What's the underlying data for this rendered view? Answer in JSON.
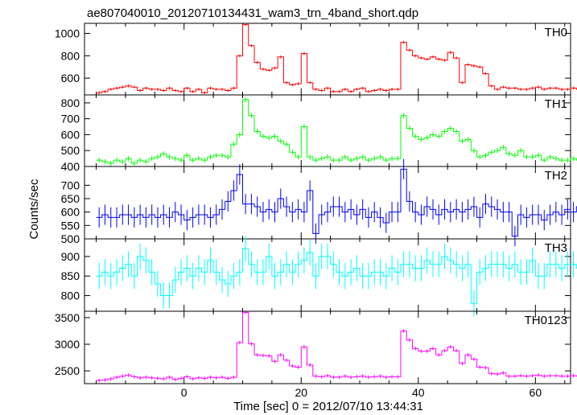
{
  "chart_data": {
    "type": "line",
    "title": "ae807040010_20120710134431_wam3_trn_4band_short.qdp",
    "xlabel": "Time [sec] 0 = 2012/07/10 13:44:31",
    "ylabel": "Counts/sec",
    "xlim": [
      -17,
      66
    ],
    "xticks": [
      0,
      20,
      40,
      60
    ],
    "bin_start": -15,
    "bin_width": 1,
    "grid": false,
    "panels": [
      {
        "name": "TH0",
        "color": "#ff0000",
        "ylim": [
          450,
          1090
        ],
        "yticks": [
          600,
          800,
          1000
        ],
        "values": [
          470,
          480,
          500,
          510,
          520,
          530,
          520,
          490,
          510,
          500,
          500,
          490,
          510,
          490,
          480,
          510,
          480,
          500,
          470,
          510,
          500,
          500,
          490,
          510,
          800,
          1080,
          890,
          740,
          680,
          670,
          690,
          790,
          560,
          540,
          550,
          820,
          560,
          500,
          490,
          510,
          480,
          480,
          500,
          480,
          500,
          510,
          480,
          490,
          500,
          490,
          500,
          500,
          920,
          850,
          800,
          780,
          770,
          790,
          770,
          760,
          830,
          780,
          560,
          720,
          710,
          700,
          640,
          530,
          500,
          520,
          510,
          510,
          500,
          500,
          510,
          520,
          500,
          510,
          510,
          500,
          500,
          510,
          500,
          510,
          500,
          510,
          500,
          500,
          490,
          500,
          480,
          490,
          500,
          510,
          500,
          510,
          520,
          500,
          510,
          490,
          490,
          480,
          490,
          490,
          500,
          510,
          520,
          530,
          510,
          520
        ]
      },
      {
        "name": "TH1",
        "color": "#00ff00",
        "ylim": [
          400,
          850
        ],
        "yticks": [
          400,
          500,
          600,
          700,
          800
        ],
        "values": [
          440,
          430,
          420,
          440,
          430,
          450,
          420,
          440,
          430,
          450,
          460,
          480,
          460,
          450,
          440,
          470,
          440,
          450,
          440,
          460,
          470,
          470,
          460,
          540,
          600,
          820,
          720,
          620,
          590,
          580,
          590,
          560,
          540,
          490,
          460,
          650,
          460,
          440,
          450,
          460,
          440,
          440,
          460,
          440,
          450,
          460,
          440,
          450,
          460,
          440,
          450,
          450,
          720,
          640,
          590,
          570,
          580,
          600,
          590,
          620,
          640,
          620,
          560,
          570,
          500,
          460,
          470,
          490,
          500,
          520,
          480,
          470,
          500,
          460,
          460,
          470,
          440,
          460,
          450,
          440,
          440,
          450,
          440,
          450,
          440,
          430,
          450,
          440,
          450,
          440,
          430,
          450,
          460,
          470,
          480,
          470,
          460,
          460,
          450,
          460,
          440,
          420,
          450,
          520,
          440,
          460,
          450,
          430,
          440,
          450
        ]
      },
      {
        "name": "TH2",
        "color": "#0000ff",
        "ylim": [
          500,
          770
        ],
        "yticks": [
          500,
          550,
          600,
          650,
          700
        ],
        "values": [
          580,
          590,
          580,
          580,
          590,
          590,
          580,
          590,
          580,
          590,
          580,
          590,
          580,
          600,
          590,
          570,
          580,
          590,
          590,
          580,
          590,
          610,
          640,
          680,
          740,
          630,
          630,
          620,
          600,
          610,
          600,
          650,
          620,
          600,
          610,
          600,
          680,
          520,
          590,
          600,
          620,
          620,
          600,
          610,
          590,
          610,
          580,
          600,
          580,
          560,
          600,
          600,
          760,
          640,
          600,
          590,
          620,
          610,
          590,
          610,
          600,
          610,
          600,
          610,
          620,
          580,
          630,
          620,
          610,
          600,
          600,
          510,
          590,
          580,
          590,
          590,
          570,
          590,
          600,
          590,
          610,
          600,
          620,
          590,
          560,
          590,
          600,
          640,
          630,
          550,
          580,
          590,
          600,
          590,
          600,
          620,
          600,
          610,
          590,
          600,
          600,
          610,
          620,
          590,
          600,
          610,
          600,
          620,
          600,
          610
        ]
      },
      {
        "name": "TH3",
        "color": "#00ffff",
        "ylim": [
          760,
          945
        ],
        "yticks": [
          800,
          850,
          900
        ],
        "values": [
          850,
          860,
          850,
          860,
          870,
          880,
          850,
          900,
          890,
          860,
          830,
          800,
          800,
          840,
          860,
          870,
          850,
          870,
          860,
          890,
          860,
          840,
          830,
          850,
          860,
          920,
          880,
          860,
          860,
          900,
          850,
          860,
          880,
          860,
          880,
          890,
          910,
          850,
          900,
          900,
          880,
          860,
          850,
          860,
          870,
          850,
          850,
          860,
          860,
          850,
          870,
          860,
          880,
          880,
          870,
          870,
          890,
          880,
          880,
          900,
          890,
          880,
          870,
          880,
          780,
          860,
          870,
          880,
          880,
          880,
          870,
          880,
          860,
          860,
          890,
          850,
          850,
          880,
          880,
          870,
          880,
          880,
          870,
          870,
          880,
          870,
          880,
          870,
          880,
          880,
          870,
          870,
          880,
          870,
          870,
          900,
          890,
          880,
          860,
          870,
          870,
          880,
          860,
          880,
          880,
          860,
          870,
          880,
          870,
          880
        ]
      },
      {
        "name": "TH0123",
        "color": "#ff00ff",
        "ylim": [
          2260,
          3620
        ],
        "yticks": [
          2500,
          3000,
          3500
        ],
        "values": [
          2320,
          2330,
          2350,
          2380,
          2400,
          2420,
          2390,
          2370,
          2380,
          2370,
          2360,
          2350,
          2380,
          2340,
          2360,
          2390,
          2350,
          2370,
          2360,
          2380,
          2370,
          2380,
          2360,
          2380,
          3030,
          3600,
          3010,
          2800,
          2790,
          2780,
          2680,
          2800,
          2700,
          2590,
          2570,
          2950,
          2610,
          2400,
          2390,
          2410,
          2380,
          2380,
          2400,
          2380,
          2390,
          2400,
          2380,
          2390,
          2400,
          2380,
          2390,
          2390,
          3250,
          3080,
          2920,
          2870,
          2870,
          2920,
          2800,
          2880,
          2950,
          2880,
          2640,
          2800,
          2720,
          2570,
          2560,
          2450,
          2440,
          2460,
          2400,
          2400,
          2410,
          2400,
          2410,
          2420,
          2400,
          2410,
          2410,
          2400,
          2400,
          2410,
          2400,
          2410,
          2400,
          2410,
          2400,
          2400,
          2390,
          2400,
          2380,
          2390,
          2400,
          2420,
          2450,
          2430,
          2410,
          2400,
          2400,
          2390,
          2390,
          2380,
          2390,
          2400,
          2410,
          2420,
          2430,
          2440,
          2420,
          2440
        ]
      }
    ]
  }
}
